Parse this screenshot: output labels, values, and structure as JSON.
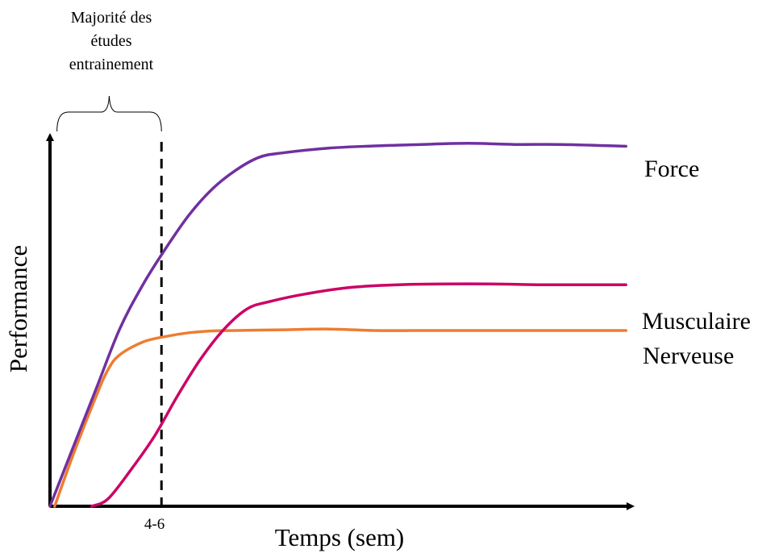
{
  "chart_data": {
    "type": "line",
    "title": "",
    "xlabel": "Temps (sem)",
    "ylabel": "Performance",
    "xlim": [
      0,
      25
    ],
    "ylim": [
      0,
      100
    ],
    "x_ticks": [
      {
        "x": 4.5,
        "label": "4-6"
      }
    ],
    "grid": false,
    "legend": "direct labels at the right end of each curve",
    "annotation": {
      "text_lines": [
        "Majorité des",
        "études",
        "entrainement"
      ],
      "bracket_from_x": 0.3,
      "bracket_to_x": 4.8,
      "marker_x": 4.8,
      "marker_style": "dashed vertical line"
    },
    "series": [
      {
        "name": "Force",
        "color": "#7030A0",
        "x": [
          0,
          1,
          2,
          3,
          4,
          5,
          6,
          7,
          8,
          9,
          10,
          12,
          14,
          16,
          18,
          20,
          22,
          24.8
        ],
        "y": [
          0,
          16,
          32,
          48,
          60,
          70,
          79,
          86,
          91,
          94.5,
          95.7,
          97,
          97.6,
          98,
          98.3,
          98,
          98,
          97.5
        ]
      },
      {
        "name": "Musculaire",
        "color": "#CC0066",
        "x": [
          1.8,
          2.5,
          3.5,
          4.5,
          5.5,
          6.5,
          7.5,
          8.5,
          9.5,
          11,
          13,
          15,
          17,
          19,
          21,
          23,
          24.8
        ],
        "y": [
          0,
          2,
          10,
          19,
          30,
          40,
          48,
          53.5,
          55.5,
          57.5,
          59.3,
          60,
          60.2,
          60.2,
          60,
          60,
          60
        ]
      },
      {
        "name": "Nerveuse",
        "color": "#ED7D31",
        "x": [
          0.2,
          1,
          2,
          2.5,
          3,
          4,
          5,
          6,
          7,
          8,
          10,
          12,
          14,
          16,
          18,
          20,
          22,
          24.8
        ],
        "y": [
          0,
          14,
          30,
          37,
          41,
          44.5,
          46,
          47,
          47.5,
          47.6,
          47.8,
          48,
          47.6,
          47.6,
          47.6,
          47.6,
          47.6,
          47.6
        ]
      }
    ]
  }
}
